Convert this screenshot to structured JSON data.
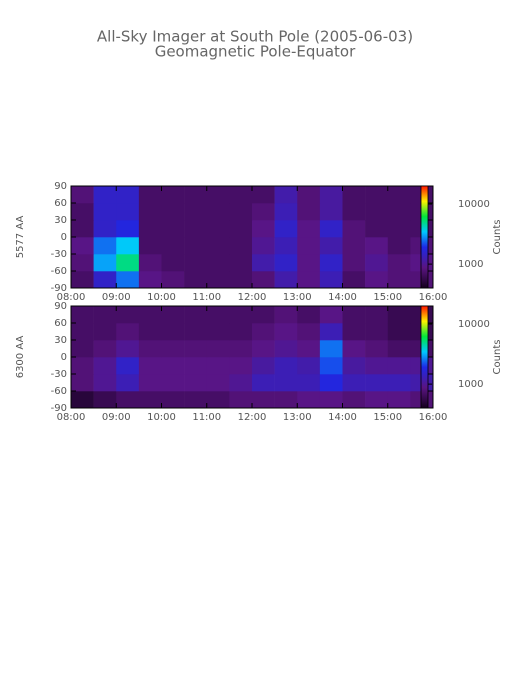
{
  "title": "All-Sky Imager at South Pole (2005-06-03)",
  "subtitle": "Geomagnetic Pole-Equator",
  "chart_data": [
    {
      "type": "heatmap",
      "ylabel": "5577 AA",
      "zlabel": "Counts",
      "zscale": "log",
      "xlim": [
        8,
        16
      ],
      "xticks": [
        {
          "value": 8,
          "label": "08:00"
        },
        {
          "value": 9,
          "label": "09:00"
        },
        {
          "value": 10,
          "label": "10:00"
        },
        {
          "value": 11,
          "label": "11:00"
        },
        {
          "value": 12,
          "label": "12:00"
        },
        {
          "value": 13,
          "label": "13:00"
        },
        {
          "value": 14,
          "label": "14:00"
        },
        {
          "value": 15,
          "label": "15:00"
        },
        {
          "value": 16,
          "label": "16:00"
        }
      ],
      "ylim": [
        -90,
        90
      ],
      "yticks": [
        90,
        60,
        30,
        0,
        -30,
        -60,
        -90
      ],
      "zlim": [
        400,
        20000
      ],
      "zticks": [
        1000,
        10000
      ],
      "xbins": [
        8,
        8.5,
        9,
        9.5,
        10,
        10.5,
        11,
        11.5,
        12,
        12.5,
        13,
        13.5,
        14,
        14.5,
        15,
        15.5,
        16
      ],
      "ybins": [
        -90,
        -60,
        -30,
        0,
        30,
        60,
        90
      ],
      "z": [
        [
          700,
          1500,
          2500,
          900,
          800,
          700,
          700,
          700,
          800,
          1200,
          900,
          1300,
          700,
          900,
          800,
          800
        ],
        [
          800,
          3000,
          5000,
          800,
          700,
          700,
          700,
          700,
          1200,
          1500,
          900,
          1500,
          800,
          1000,
          800,
          900
        ],
        [
          900,
          2500,
          3500,
          700,
          700,
          700,
          700,
          700,
          1000,
          1300,
          900,
          1200,
          800,
          900,
          700,
          800
        ],
        [
          700,
          1500,
          1800,
          700,
          700,
          700,
          700,
          700,
          900,
          1500,
          900,
          1500,
          800,
          700,
          700,
          700
        ],
        [
          700,
          1500,
          1500,
          700,
          700,
          700,
          700,
          700,
          800,
          1300,
          800,
          1100,
          700,
          700,
          700,
          700
        ],
        [
          800,
          1500,
          1500,
          700,
          700,
          700,
          700,
          700,
          700,
          1200,
          800,
          1100,
          700,
          700,
          700,
          700
        ]
      ]
    },
    {
      "type": "heatmap",
      "ylabel": "6300 AA",
      "zlabel": "Counts",
      "zscale": "log",
      "xlim": [
        8,
        16
      ],
      "xticks": [
        {
          "value": 8,
          "label": "08:00"
        },
        {
          "value": 9,
          "label": "09:00"
        },
        {
          "value": 10,
          "label": "10:00"
        },
        {
          "value": 11,
          "label": "11:00"
        },
        {
          "value": 12,
          "label": "12:00"
        },
        {
          "value": 13,
          "label": "13:00"
        },
        {
          "value": 14,
          "label": "14:00"
        },
        {
          "value": 15,
          "label": "15:00"
        },
        {
          "value": 16,
          "label": "16:00"
        }
      ],
      "ylim": [
        -90,
        90
      ],
      "yticks": [
        90,
        60,
        30,
        0,
        -30,
        -60,
        -90
      ],
      "zlim": [
        400,
        20000
      ],
      "zticks": [
        1000,
        10000
      ],
      "xbins": [
        8,
        8.5,
        9,
        9.5,
        10,
        10.5,
        11,
        11.5,
        12,
        12.5,
        13,
        13.5,
        14,
        14.5,
        15,
        15.5,
        16
      ],
      "ybins": [
        -90,
        -60,
        -30,
        0,
        30,
        60,
        90
      ],
      "z": [
        [
          500,
          600,
          700,
          700,
          700,
          700,
          700,
          800,
          800,
          800,
          900,
          900,
          800,
          900,
          900,
          800
        ],
        [
          800,
          1000,
          1300,
          900,
          900,
          900,
          900,
          1000,
          1300,
          1300,
          1300,
          1800,
          1300,
          1300,
          1300,
          1200
        ],
        [
          800,
          1000,
          1500,
          900,
          900,
          900,
          900,
          900,
          1100,
          1300,
          1200,
          2200,
          1100,
          1000,
          1000,
          1000
        ],
        [
          700,
          800,
          1000,
          800,
          800,
          800,
          800,
          800,
          900,
          1000,
          900,
          2500,
          900,
          800,
          700,
          700
        ],
        [
          700,
          700,
          800,
          700,
          700,
          700,
          700,
          700,
          800,
          900,
          800,
          1300,
          700,
          700,
          600,
          600
        ],
        [
          700,
          700,
          700,
          700,
          700,
          700,
          700,
          700,
          700,
          800,
          700,
          900,
          700,
          700,
          600,
          600
        ]
      ]
    }
  ]
}
